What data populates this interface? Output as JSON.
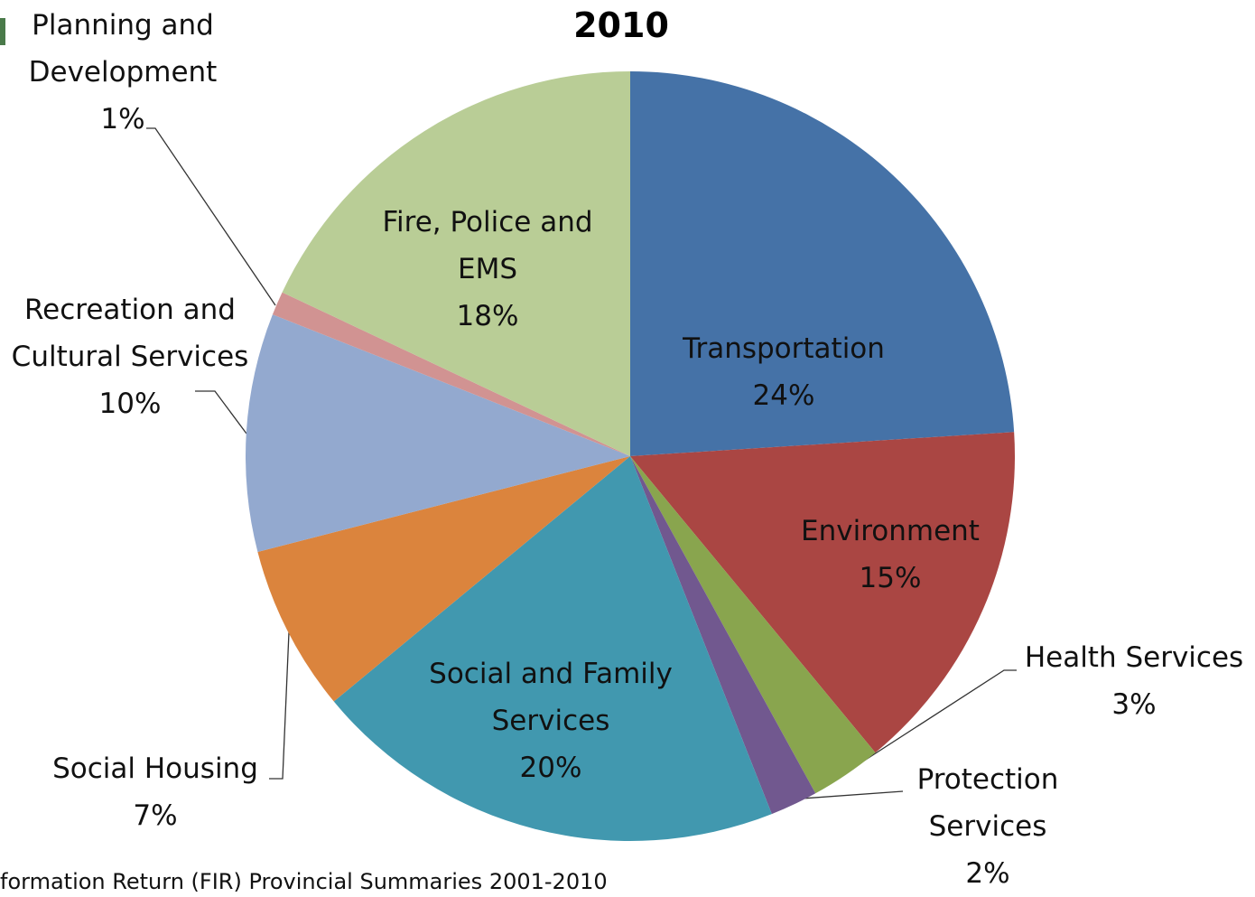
{
  "chart_data": {
    "type": "pie",
    "title": "2010",
    "categories": [
      "Transportation",
      "Environment",
      "Health Services",
      "Protection Services",
      "Social and Family Services",
      "Social Housing",
      "Recreation and Cultural Services",
      "Planning and Development",
      "Fire, Police and EMS"
    ],
    "values": [
      24,
      15,
      3,
      2,
      20,
      7,
      10,
      1,
      18
    ],
    "value_labels": [
      "24%",
      "15%",
      "3%",
      "2%",
      "20%",
      "7%",
      "10%",
      "1%",
      "18%"
    ],
    "colors": [
      "#4572a7",
      "#aa4643",
      "#89a54e",
      "#71588f",
      "#4198af",
      "#db843d",
      "#93a9cf",
      "#d19392",
      "#b9cd96"
    ],
    "source": "formation Return (FIR) Provincial Summaries 2001-2010"
  }
}
